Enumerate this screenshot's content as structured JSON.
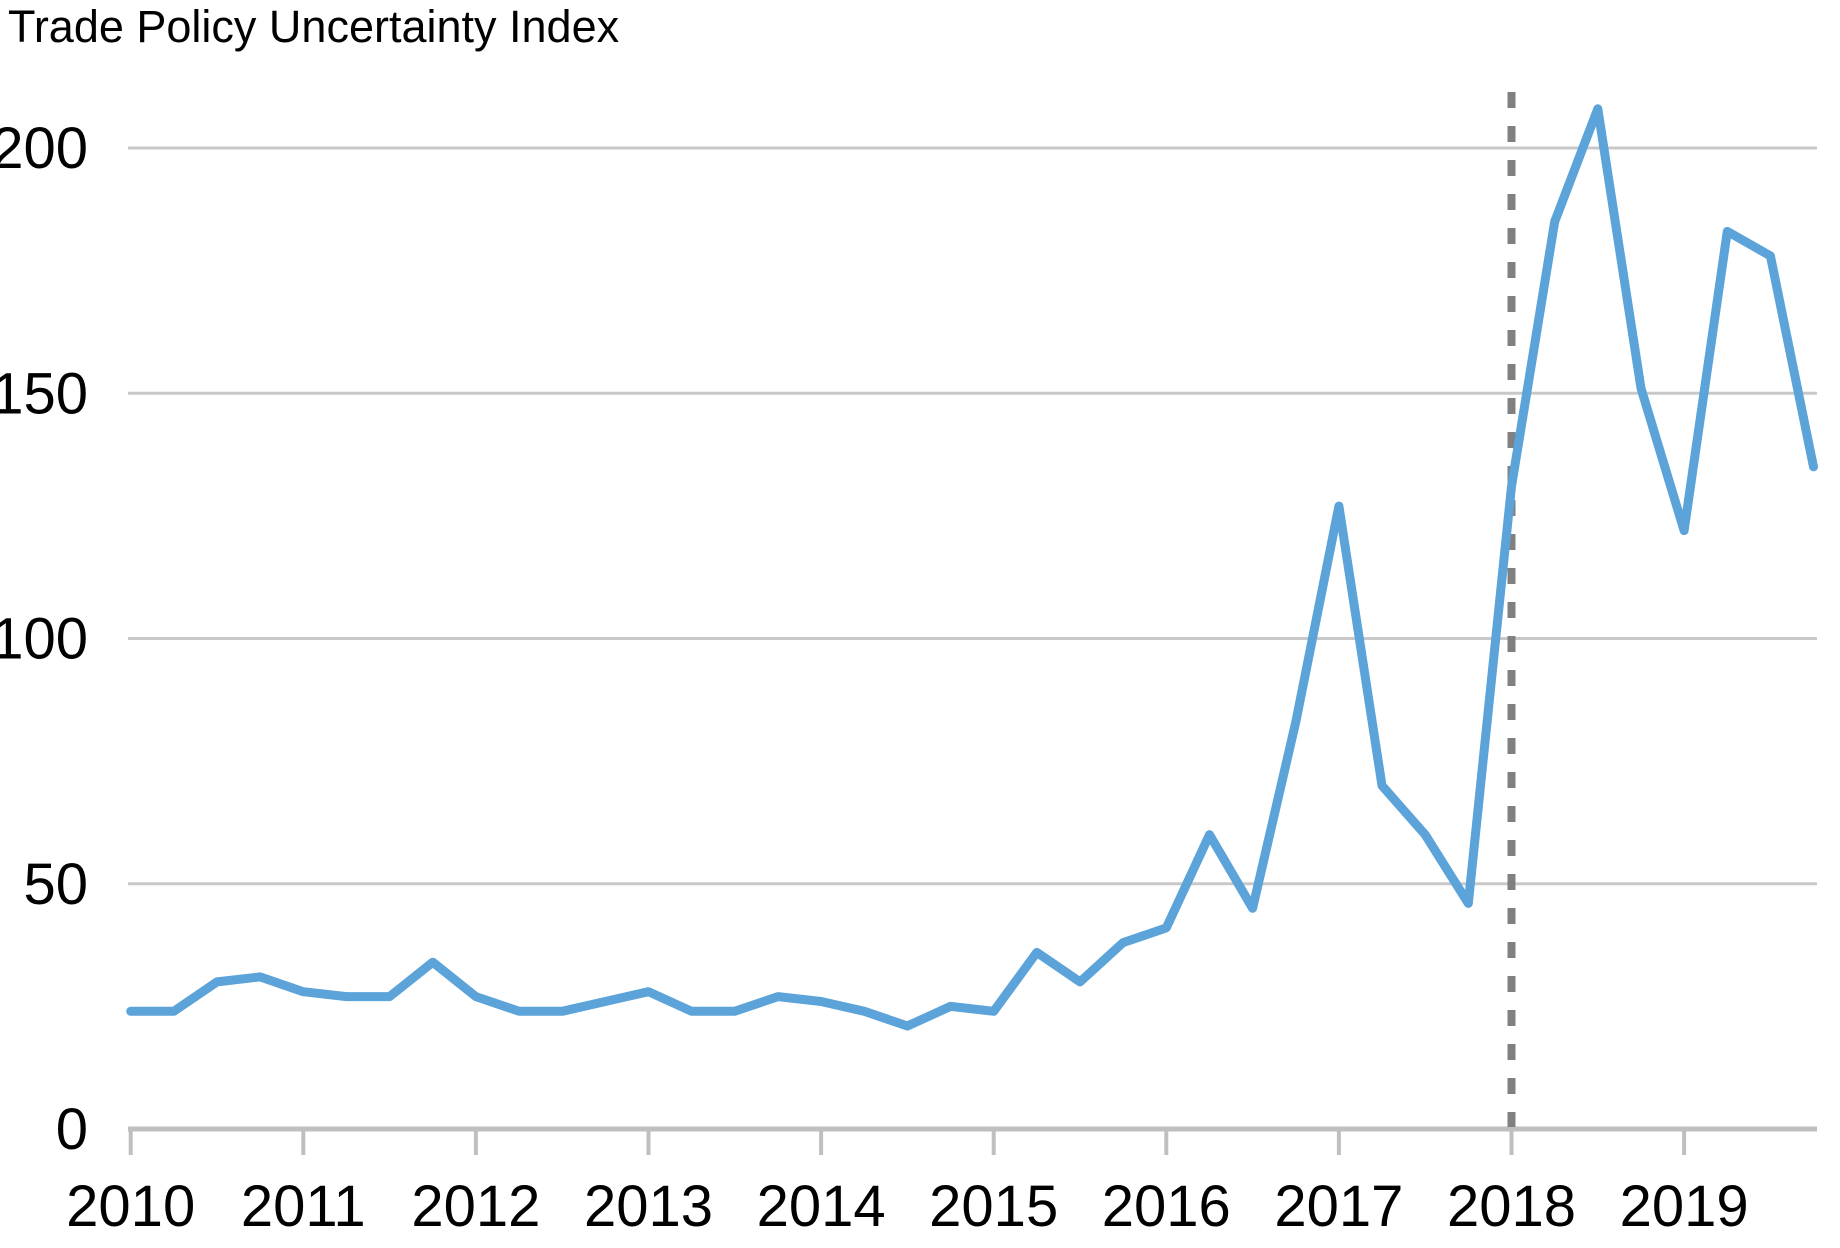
{
  "chart_data": {
    "type": "line",
    "title": "Trade Policy Uncertainty Index",
    "x_tick_labels": [
      "2010",
      "2011",
      "2012",
      "2013",
      "2014",
      "2015",
      "2016",
      "2017",
      "2018",
      "2019"
    ],
    "points_per_year": 4,
    "first_point": "2010 Q1",
    "last_point": "2019 Q4",
    "series": [
      {
        "name": "Trade Policy Uncertainty Index",
        "color": "#5BA3D9",
        "values": [
          24,
          24,
          30,
          31,
          28,
          27,
          27,
          34,
          27,
          24,
          24,
          26,
          28,
          24,
          24,
          27,
          26,
          24,
          21,
          25,
          24,
          36,
          30,
          38,
          41,
          60,
          45,
          83,
          127,
          70,
          60,
          46,
          131,
          185,
          208,
          151,
          122,
          183,
          178,
          135
        ]
      }
    ],
    "y_ticks": [
      0,
      50,
      100,
      150,
      200
    ],
    "ylim": [
      0,
      213
    ],
    "grid": "horizontal",
    "legend": "none",
    "vline": {
      "at_x_label": "2018",
      "style": "dashed",
      "color": "#808080"
    },
    "grid_color": "#C8C8C8",
    "axis_color": "#BFBFBF",
    "text_color": "#000000",
    "background_color": "#FFFFFF"
  }
}
